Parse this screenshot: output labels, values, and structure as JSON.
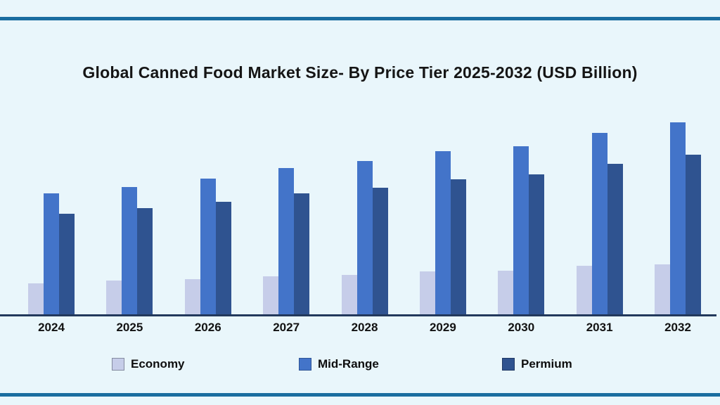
{
  "page": {
    "background_color": "#e9f6fb",
    "frame_rule_color": "#1a6da0",
    "axis_line_color": "#22395c",
    "text_color": "#151515"
  },
  "chart_data": {
    "type": "bar",
    "title": "Global Canned Food Market Size- By Price Tier 2025-2032 (USD Billion)",
    "xlabel": "",
    "ylabel": "",
    "categories": [
      "2024",
      "2025",
      "2026",
      "2027",
      "2028",
      "2029",
      "2030",
      "2031",
      "2032"
    ],
    "series": [
      {
        "name": "Economy",
        "color": "#c6cde9",
        "swatch_border": "#848ba0",
        "values": [
          45,
          49,
          51,
          55,
          57,
          62,
          63,
          70,
          72
        ]
      },
      {
        "name": "Mid-Range",
        "color": "#4374c9",
        "swatch_border": "#2f5596",
        "values": [
          173,
          182,
          194,
          209,
          219,
          233,
          240,
          259,
          274
        ]
      },
      {
        "name": "Permium",
        "color": "#2f5390",
        "swatch_border": "#1f3864",
        "values": [
          144,
          152,
          161,
          173,
          181,
          193,
          200,
          215,
          228
        ]
      }
    ],
    "ylim": [
      0,
      290
    ],
    "y_axis_visible": false,
    "grid": false,
    "legend_position": "bottom",
    "values_note": "No y-axis scale is shown in the image; series values are relative bar heights measured in pixels on a 290px-tall plot area."
  }
}
